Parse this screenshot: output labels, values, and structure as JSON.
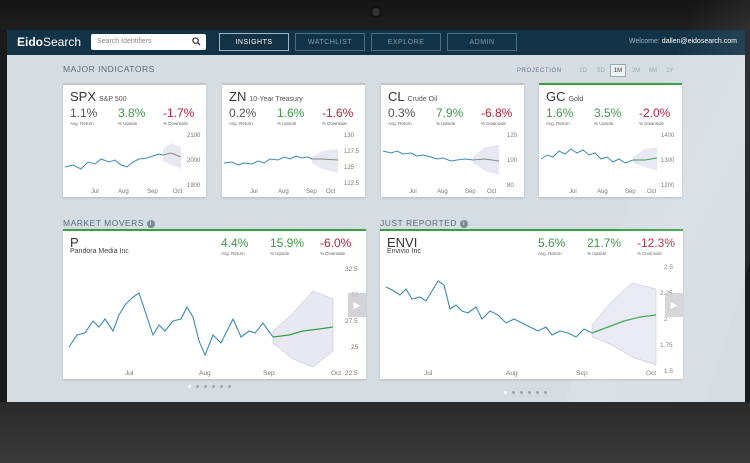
{
  "app": {
    "logo_bold": "Eido",
    "logo_light": "Search"
  },
  "search": {
    "placeholder": "Search Identifiers"
  },
  "nav": [
    {
      "label": "INSIGHTS",
      "active": true
    },
    {
      "label": "WATCHLIST",
      "active": false
    },
    {
      "label": "EXPLORE",
      "active": false
    },
    {
      "label": "ADMIN",
      "active": false
    }
  ],
  "user": {
    "welcome": "Welcome",
    "email": "dallen@eidosearch.com"
  },
  "major": {
    "title": "MAJOR INDICATORS",
    "projection_label": "PROJECTION",
    "projection_options": [
      "1D",
      "5D",
      "1M",
      "3M",
      "6M",
      "1Y"
    ],
    "projection_selected": "1M",
    "stat_labels": [
      "Avg. Return",
      "% Upside",
      "% Downside"
    ],
    "cards": [
      {
        "ticker": "SPX",
        "name": "S&P 500",
        "avg": "1.1%",
        "up": "3.8%",
        "down": "-1.7%",
        "yticks": [
          "2100",
          "2000",
          "1900"
        ],
        "xticks": [
          "Jul",
          "Aug",
          "Sep",
          "Oct"
        ],
        "highlight": false
      },
      {
        "ticker": "ZN",
        "name": "10-Year Treasury",
        "avg": "0.2%",
        "up": "1.6%",
        "down": "-1.6%",
        "yticks": [
          "130",
          "127.5",
          "125",
          "122.5"
        ],
        "xticks": [
          "Jul",
          "Aug",
          "Sep",
          "Oct"
        ],
        "highlight": false
      },
      {
        "ticker": "CL",
        "name": "Crude Oil",
        "avg": "0.3%",
        "up": "7.9%",
        "down": "-6.8%",
        "yticks": [
          "120",
          "100",
          "80"
        ],
        "xticks": [
          "Jul",
          "Aug",
          "Sep",
          "Oct"
        ],
        "highlight": false
      },
      {
        "ticker": "GC",
        "name": "Gold",
        "avg": "1.6%",
        "up": "3.5%",
        "down": "-2.0%",
        "yticks": [
          "1400",
          "1300",
          "1200"
        ],
        "xticks": [
          "Jul",
          "Aug",
          "Sep",
          "Oct"
        ],
        "highlight": true
      }
    ]
  },
  "movers": {
    "title": "MARKET MOVERS",
    "ticker": "P",
    "name": "Pandora Media Inc",
    "avg": "4.4%",
    "up": "15.9%",
    "down": "-6.0%",
    "stat_labels": [
      "Avg. Return",
      "% Upside",
      "% Downside"
    ],
    "yticks": [
      "32.5",
      "30",
      "27.5",
      "25",
      "22.5"
    ],
    "xticks": [
      "Jul",
      "Aug",
      "Sep",
      "Oct"
    ]
  },
  "reported": {
    "title": "JUST REPORTED",
    "ticker": "ENVI",
    "name": "Envivio Inc",
    "avg": "5.6%",
    "up": "21.7%",
    "down": "-12.3%",
    "stat_labels": [
      "Avg. Return",
      "% Upside",
      "% Downside"
    ],
    "yticks": [
      "2.5",
      "2.25",
      "2",
      "1.75",
      "1.5"
    ],
    "xticks": [
      "Jul",
      "Aug",
      "Sep",
      "Oct"
    ]
  },
  "colors": {
    "header": "#123246",
    "up": "#3c9a48",
    "down": "#b4233a",
    "line": "#3d8bb5",
    "projection": "#35a046"
  }
}
